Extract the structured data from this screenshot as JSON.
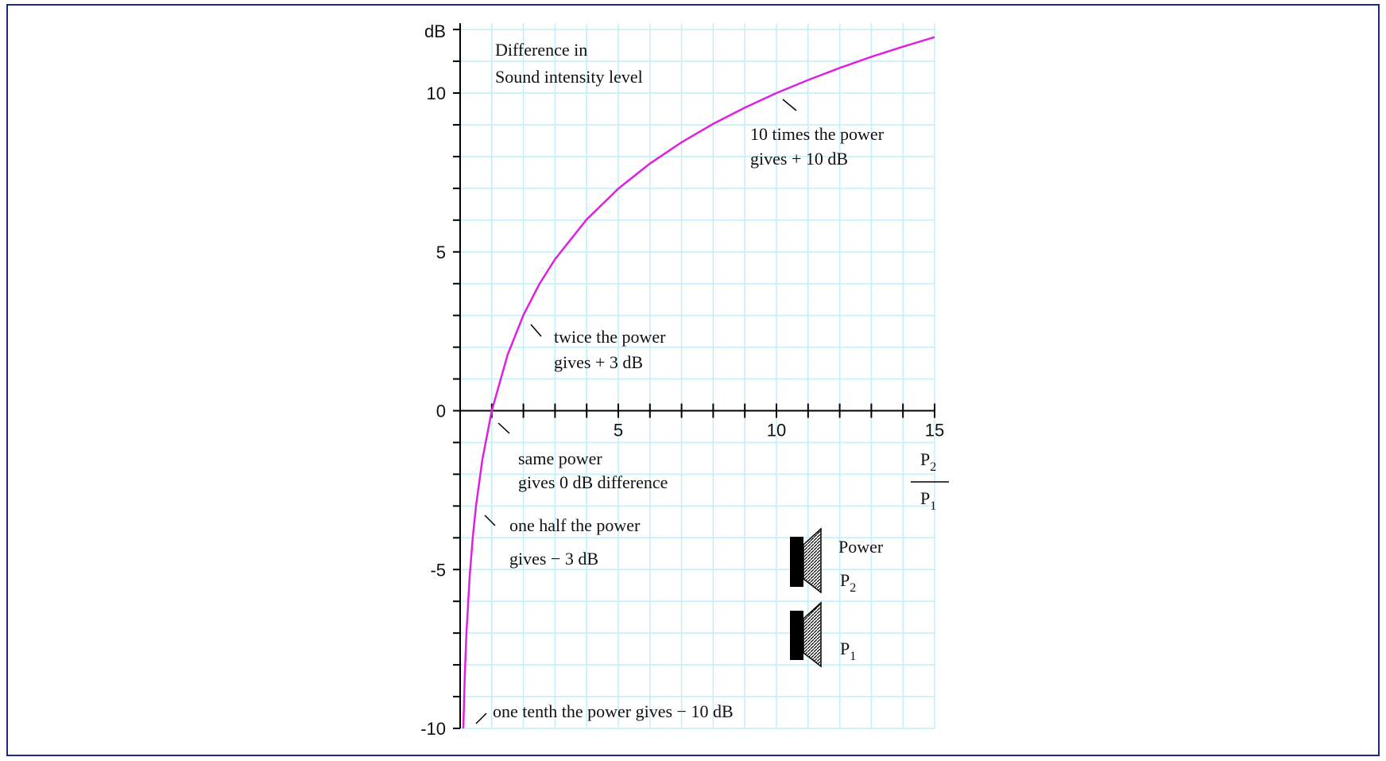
{
  "chart_data": {
    "type": "line",
    "title": [
      "Difference in",
      "Sound intensity level"
    ],
    "y_label": "dB",
    "x_label": {
      "numerator": [
        "P",
        "2"
      ],
      "denominator": [
        "P",
        "1"
      ]
    },
    "x": [
      0.1,
      0.15,
      0.2,
      0.3,
      0.4,
      0.5,
      0.7,
      1,
      1.5,
      2,
      2.5,
      3,
      4,
      5,
      6,
      7,
      8,
      9,
      10,
      11,
      12,
      13,
      14,
      15
    ],
    "series": [
      {
        "name": "Difference in Sound intensity level",
        "color": "#e020e0",
        "values": [
          -10,
          -8.24,
          -6.99,
          -5.23,
          -3.98,
          -3.01,
          -1.55,
          0,
          1.76,
          3.01,
          3.98,
          4.77,
          6.02,
          6.99,
          7.78,
          8.45,
          9.03,
          9.54,
          10,
          10.41,
          10.79,
          11.14,
          11.46,
          11.76
        ]
      }
    ],
    "xlim": [
      0,
      15
    ],
    "ylim": [
      -10,
      12.2
    ],
    "xticks": [
      5,
      10,
      15
    ],
    "yticks": [
      -10,
      -5,
      0,
      5,
      10
    ],
    "x_minor_ticks": [
      1,
      2,
      3,
      4,
      5,
      6,
      7,
      8,
      9,
      10,
      11,
      12,
      13,
      14,
      15
    ],
    "y_minor_ticks": [
      -10,
      -9,
      -8,
      -7,
      -6,
      -5,
      -4,
      -3,
      -2,
      -1,
      0,
      1,
      2,
      3,
      4,
      5,
      6,
      7,
      8,
      9,
      10,
      11,
      12
    ],
    "grid": true,
    "annotations": [
      {
        "lines": [
          "10 times the power",
          "gives + 10 dB"
        ]
      },
      {
        "lines": [
          "twice the power",
          "gives + 3 dB"
        ]
      },
      {
        "lines": [
          "same power",
          "gives 0 dB difference"
        ]
      },
      {
        "lines": [
          "one half the power",
          "gives − 3 dB"
        ]
      },
      {
        "lines": [
          "one tenth the power gives − 10 dB"
        ]
      }
    ],
    "speakers": {
      "title": "Power",
      "upper": [
        "P",
        "2"
      ],
      "lower": [
        "P",
        "1"
      ]
    }
  }
}
